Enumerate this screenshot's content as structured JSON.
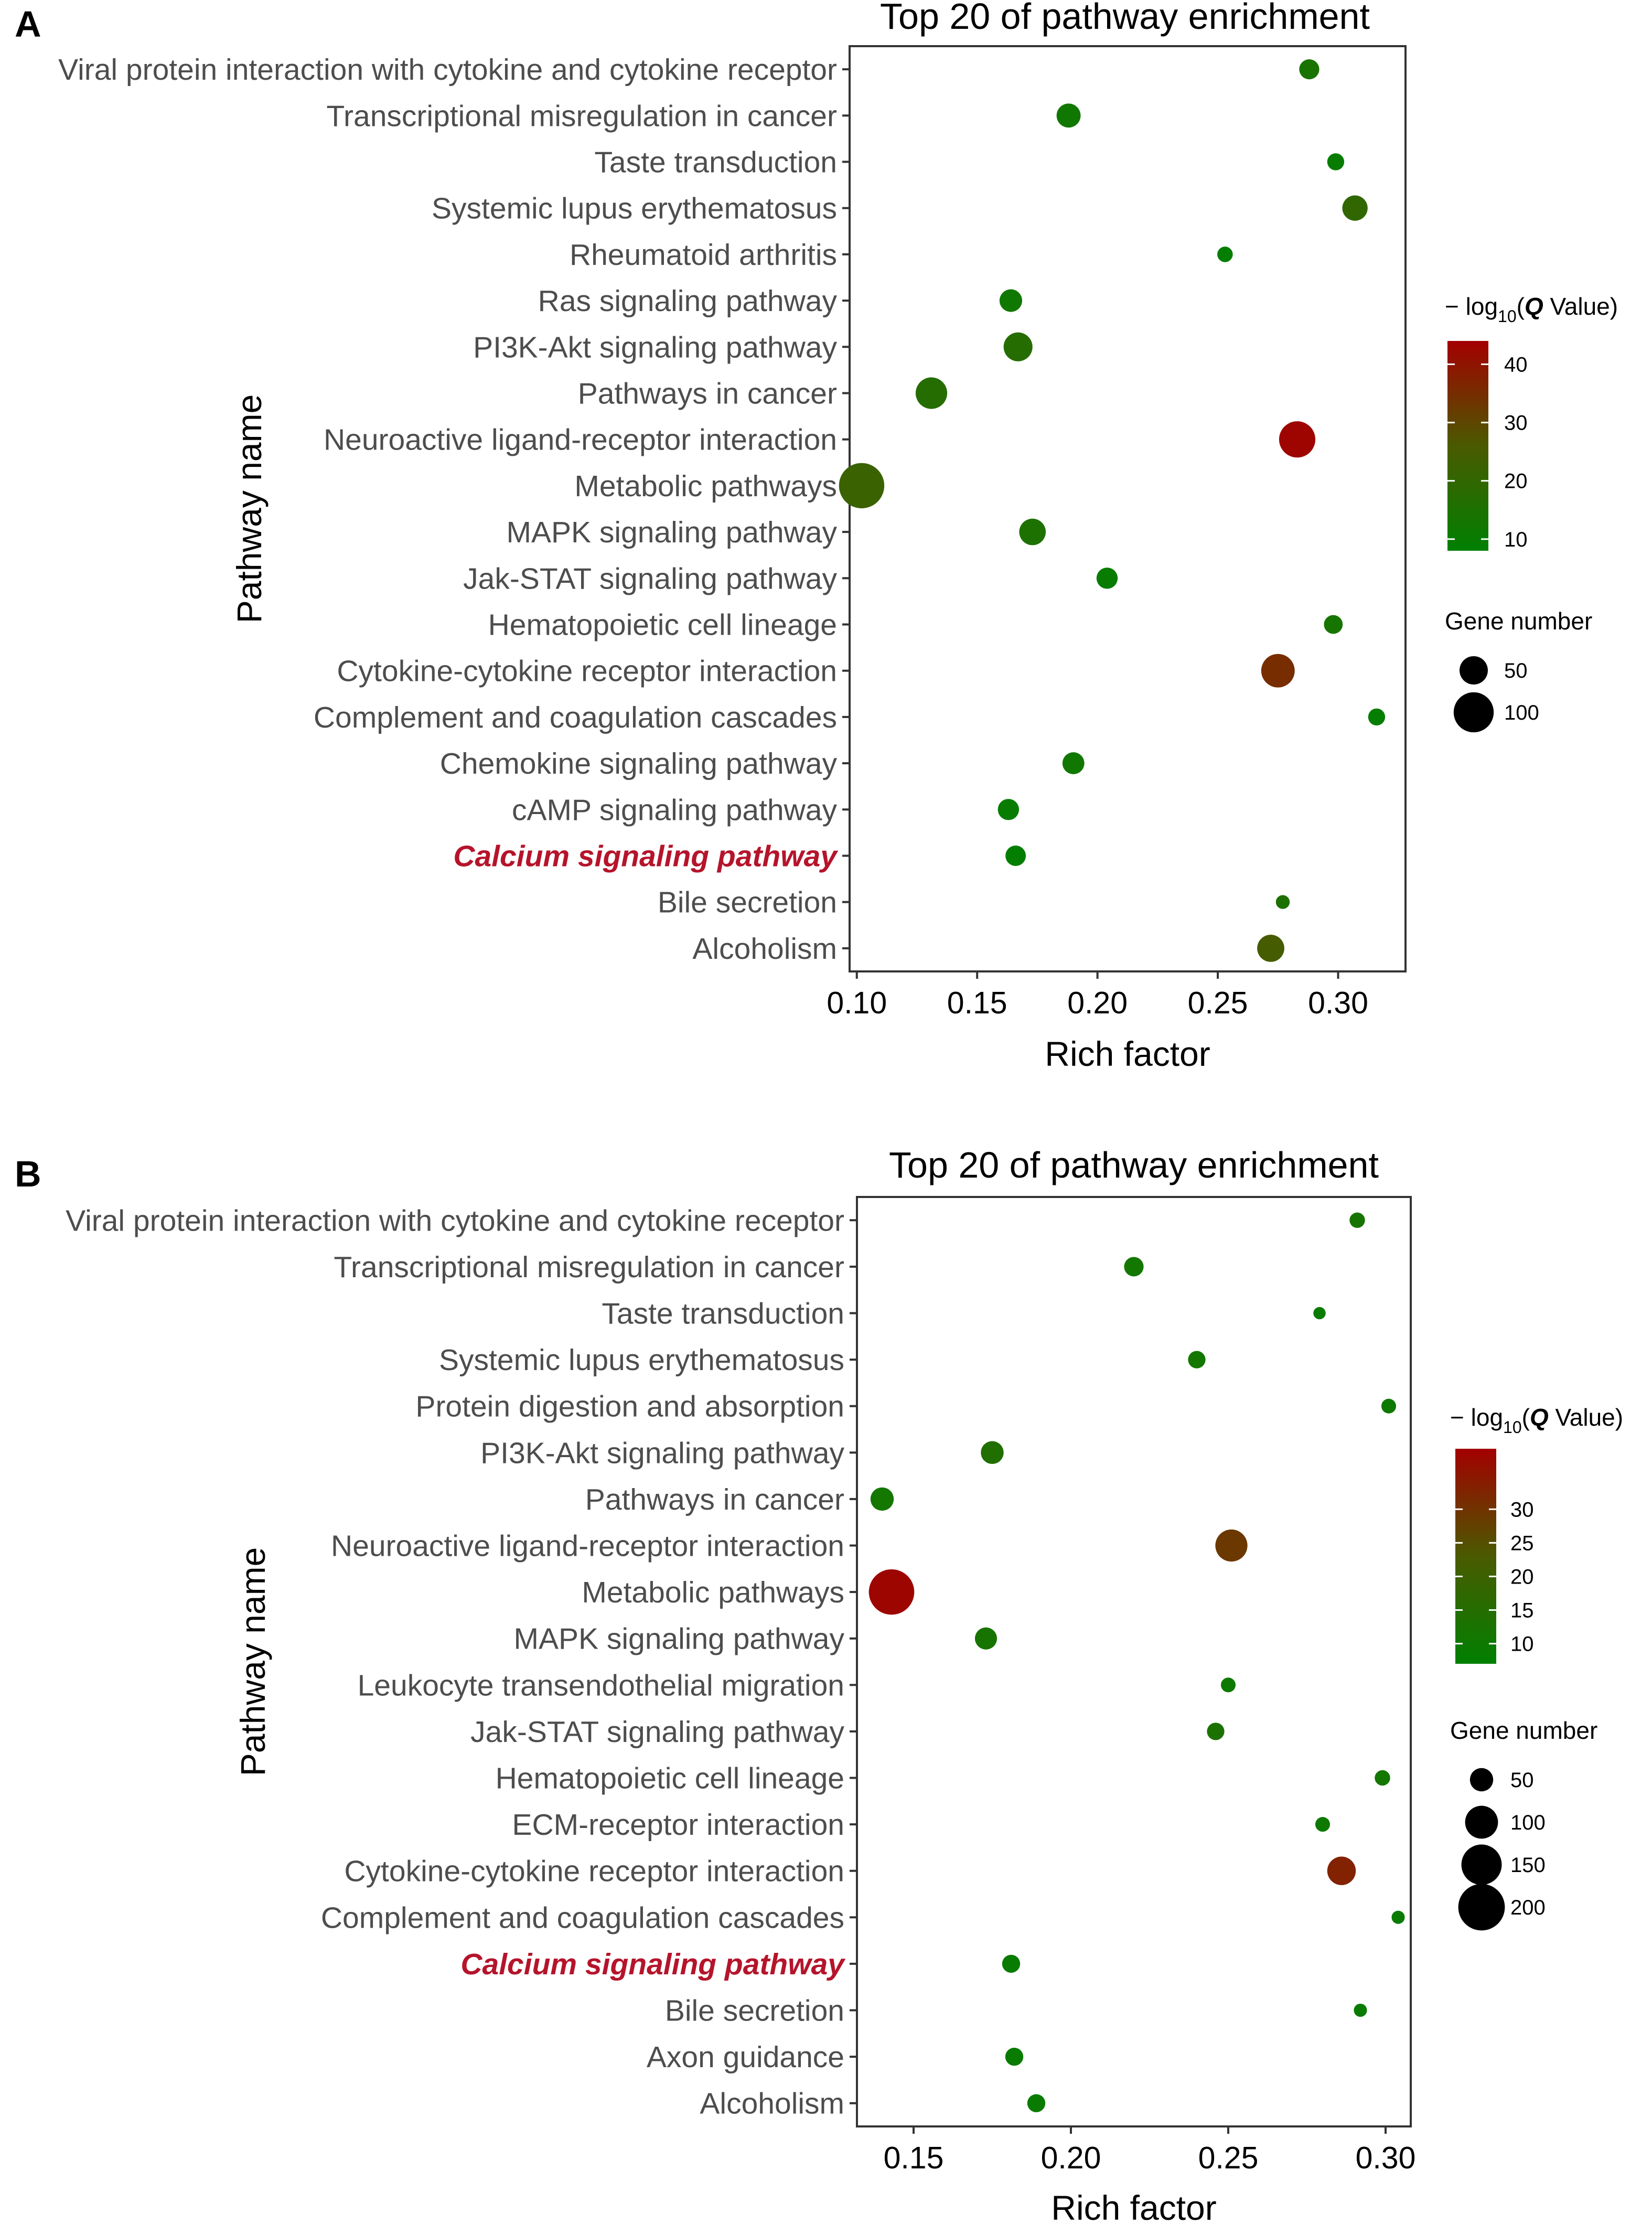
{
  "chart_data": [
    {
      "panel_label": "A",
      "type": "scatter",
      "title": "Top 20 of pathway enrichment",
      "xlabel": "Rich factor",
      "ylabel": "Pathway name",
      "xlim": [
        0.097,
        0.328
      ],
      "xticks": [
        0.1,
        0.15,
        0.2,
        0.25,
        0.3
      ],
      "xtick_labels": [
        "0.10",
        "0.15",
        "0.20",
        "0.25",
        "0.30"
      ],
      "grid": true,
      "highlight_category": "Calcium signaling pathway",
      "categories": [
        "Viral protein interaction with cytokine and cytokine receptor",
        "Transcriptional misregulation in cancer",
        "Taste transduction",
        "Systemic lupus erythematosus",
        "Rheumatoid arthritis",
        "Ras signaling pathway",
        "PI3K-Akt signaling pathway",
        "Pathways in cancer",
        "Neuroactive ligand-receptor interaction",
        "Metabolic pathways",
        "MAPK signaling pathway",
        "Jak-STAT signaling pathway",
        "Hematopoietic cell lineage",
        "Cytokine-cytokine receptor interaction",
        "Complement and coagulation cascades",
        "Chemokine signaling pathway",
        "cAMP signaling pathway",
        "Calcium signaling pathway",
        "Bile secretion",
        "Alcoholism"
      ],
      "rich_factor": [
        0.288,
        0.188,
        0.299,
        0.307,
        0.253,
        0.164,
        0.167,
        0.131,
        0.283,
        0.102,
        0.173,
        0.204,
        0.298,
        0.275,
        0.316,
        0.19,
        0.163,
        0.166,
        0.277,
        0.272
      ],
      "gene_number": [
        25,
        36,
        18,
        40,
        15,
        32,
        52,
        62,
        82,
        128,
        44,
        28,
        22,
        70,
        18,
        30,
        28,
        26,
        12,
        46
      ],
      "neg_log10_q": [
        14,
        12,
        10,
        20,
        9,
        12,
        17,
        17,
        43,
        22,
        15,
        10,
        13,
        35,
        9,
        12,
        10,
        9,
        15,
        25
      ],
      "color_scale": {
        "min": 8,
        "max": 44,
        "low_color": "#008000",
        "mid_color": "#4a5a00",
        "high_color": "#a30000"
      },
      "legend": {
        "color_title_prefix": "− log",
        "color_title_sub": "10",
        "color_title_paren_open": "(",
        "color_title_q": "Q",
        "color_title_suffix": " Value)",
        "color_ticks": [
          10,
          20,
          30,
          40
        ],
        "color_tick_labels": [
          "10",
          "20",
          "30",
          "40"
        ],
        "size_title": "Gene number",
        "size_values": [
          50,
          100
        ],
        "size_labels": [
          "50",
          "100"
        ]
      }
    },
    {
      "panel_label": "B",
      "type": "scatter",
      "title": "Top 20 of pathway enrichment",
      "xlabel": "Rich factor",
      "ylabel": "Pathway name",
      "xlim": [
        0.132,
        0.308
      ],
      "xticks": [
        0.15,
        0.2,
        0.25,
        0.3
      ],
      "xtick_labels": [
        "0.15",
        "0.20",
        "0.25",
        "0.30"
      ],
      "grid": true,
      "highlight_category": "Calcium signaling pathway",
      "categories": [
        "Viral protein interaction with cytokine and cytokine receptor",
        "Transcriptional misregulation in cancer",
        "Taste transduction",
        "Systemic lupus erythematosus",
        "Protein digestion and absorption",
        "PI3K-Akt signaling pathway",
        "Pathways in cancer",
        "Neuroactive ligand-receptor interaction",
        "Metabolic pathways",
        "MAPK signaling pathway",
        "Leukocyte transendothelial migration",
        "Jak-STAT signaling pathway",
        "Hematopoietic cell lineage",
        "ECM-receptor interaction",
        "Cytokine-cytokine receptor interaction",
        "Complement and coagulation cascades",
        "Calcium signaling pathway",
        "Bile secretion",
        "Axon guidance",
        "Alcoholism"
      ],
      "rich_factor": [
        0.291,
        0.22,
        0.279,
        0.24,
        0.301,
        0.175,
        0.14,
        0.251,
        0.143,
        0.173,
        0.25,
        0.246,
        0.299,
        0.28,
        0.286,
        0.304,
        0.181,
        0.292,
        0.182,
        0.189
      ],
      "gene_number": [
        22,
        35,
        14,
        28,
        20,
        48,
        50,
        95,
        190,
        45,
        20,
        28,
        22,
        20,
        75,
        16,
        30,
        16,
        30,
        30
      ],
      "neg_log10_q": [
        12,
        11,
        9,
        11,
        10,
        14,
        11,
        29,
        38,
        12,
        10,
        13,
        11,
        10,
        33,
        9,
        9,
        9,
        9,
        9
      ],
      "color_scale": {
        "min": 7,
        "max": 39,
        "low_color": "#008000",
        "mid_color": "#4a5a00",
        "high_color": "#a30000"
      },
      "legend": {
        "color_title_prefix": "− log",
        "color_title_sub": "10",
        "color_title_paren_open": "(",
        "color_title_q": "Q",
        "color_title_suffix": " Value)",
        "color_ticks": [
          10,
          15,
          20,
          25,
          30
        ],
        "color_tick_labels": [
          "10",
          "15",
          "20",
          "25",
          "30"
        ],
        "size_title": "Gene number",
        "size_values": [
          50,
          100,
          150,
          200
        ],
        "size_labels": [
          "50",
          "100",
          "150",
          "200"
        ]
      }
    }
  ]
}
